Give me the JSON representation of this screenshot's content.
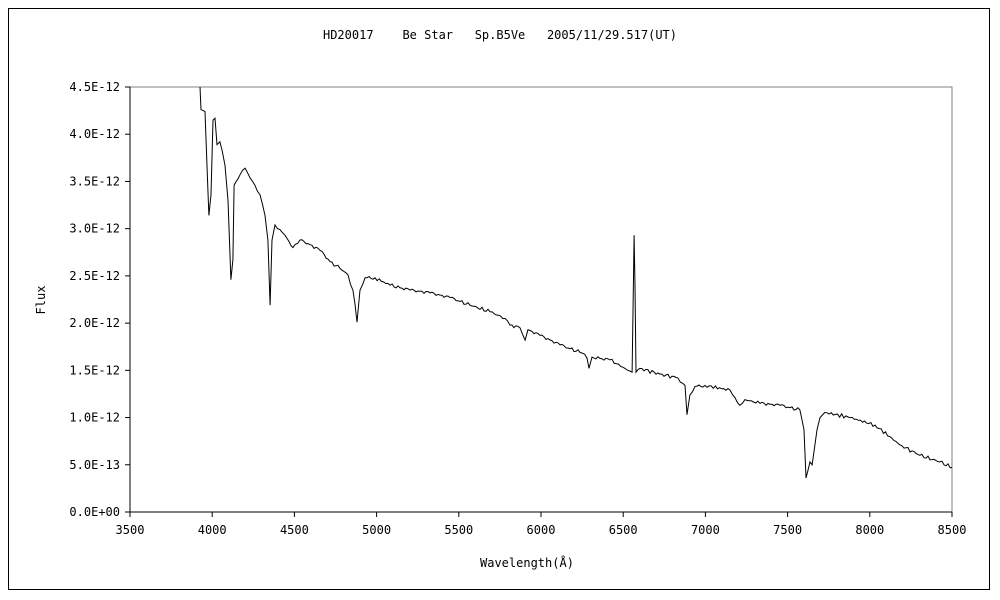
{
  "chart_data": {
    "type": "line",
    "title": "HD20017    Be Star   Sp.B5Ve   2005/11/29.517(UT)",
    "xlabel": "Wavelength(Å)",
    "ylabel": "Flux",
    "xlim": [
      3500,
      8500
    ],
    "ylim": [
      0,
      4.5e-12
    ],
    "xticks": [
      3500,
      4000,
      4500,
      5000,
      5500,
      6000,
      6500,
      7000,
      7500,
      8000,
      8500
    ],
    "xtick_labels": [
      "3500",
      "4000",
      "4500",
      "5000",
      "5500",
      "6000",
      "6500",
      "7000",
      "7500",
      "8000",
      "8500"
    ],
    "yticks": [
      0,
      5e-13,
      1e-12,
      1.5e-12,
      2e-12,
      2.5e-12,
      3e-12,
      3.5e-12,
      4e-12,
      4.5e-12
    ],
    "ytick_labels": [
      "0.0E+00",
      "5.0E-13",
      "1.0E-12",
      "1.5E-12",
      "2.0E-12",
      "2.5E-12",
      "3.0E-12",
      "3.5E-12",
      "4.0E-12",
      "4.5E-12"
    ],
    "grid": false,
    "legend": "none",
    "series": [
      {
        "name": "HD20017",
        "color": "#000000",
        "unit_scale": 1e-12,
        "x": [
          3926,
          3932,
          3956,
          3974,
          3980,
          3993,
          4005,
          4017,
          4029,
          4047,
          4060,
          4078,
          4096,
          4114,
          4126,
          4133,
          4169,
          4200,
          4230,
          4260,
          4291,
          4321,
          4339,
          4352,
          4364,
          4382,
          4412,
          4443,
          4491,
          4534,
          4595,
          4656,
          4717,
          4777,
          4826,
          4856,
          4881,
          4899,
          4930,
          4990,
          5082,
          5203,
          5325,
          5447,
          5568,
          5690,
          5781,
          5811,
          5872,
          5903,
          5921,
          5994,
          6116,
          6237,
          6280,
          6292,
          6310,
          6419,
          6511,
          6554,
          6560,
          6566,
          6572,
          6578,
          6602,
          6724,
          6833,
          6876,
          6888,
          6906,
          6937,
          6997,
          7150,
          7180,
          7210,
          7240,
          7332,
          7454,
          7575,
          7600,
          7612,
          7636,
          7649,
          7679,
          7697,
          7740,
          7880,
          8032,
          8184,
          8305,
          8427,
          8500
        ],
        "y": [
          4.5,
          4.26,
          4.24,
          3.41,
          3.14,
          3.36,
          4.15,
          4.17,
          3.89,
          3.92,
          3.83,
          3.67,
          3.3,
          2.46,
          2.67,
          3.46,
          3.57,
          3.64,
          3.54,
          3.46,
          3.36,
          3.14,
          2.88,
          2.19,
          2.88,
          3.04,
          2.99,
          2.93,
          2.8,
          2.88,
          2.83,
          2.77,
          2.65,
          2.58,
          2.51,
          2.35,
          2.01,
          2.35,
          2.48,
          2.48,
          2.4,
          2.35,
          2.32,
          2.27,
          2.19,
          2.12,
          2.05,
          1.98,
          1.95,
          1.82,
          1.93,
          1.87,
          1.77,
          1.69,
          1.63,
          1.52,
          1.64,
          1.61,
          1.52,
          1.48,
          2.19,
          2.93,
          2.4,
          1.48,
          1.52,
          1.46,
          1.42,
          1.34,
          1.03,
          1.24,
          1.33,
          1.34,
          1.29,
          1.21,
          1.13,
          1.19,
          1.15,
          1.13,
          1.08,
          0.87,
          0.36,
          0.53,
          0.5,
          0.87,
          1.0,
          1.05,
          1.0,
          0.92,
          0.71,
          0.6,
          0.53,
          0.47
        ]
      }
    ]
  }
}
